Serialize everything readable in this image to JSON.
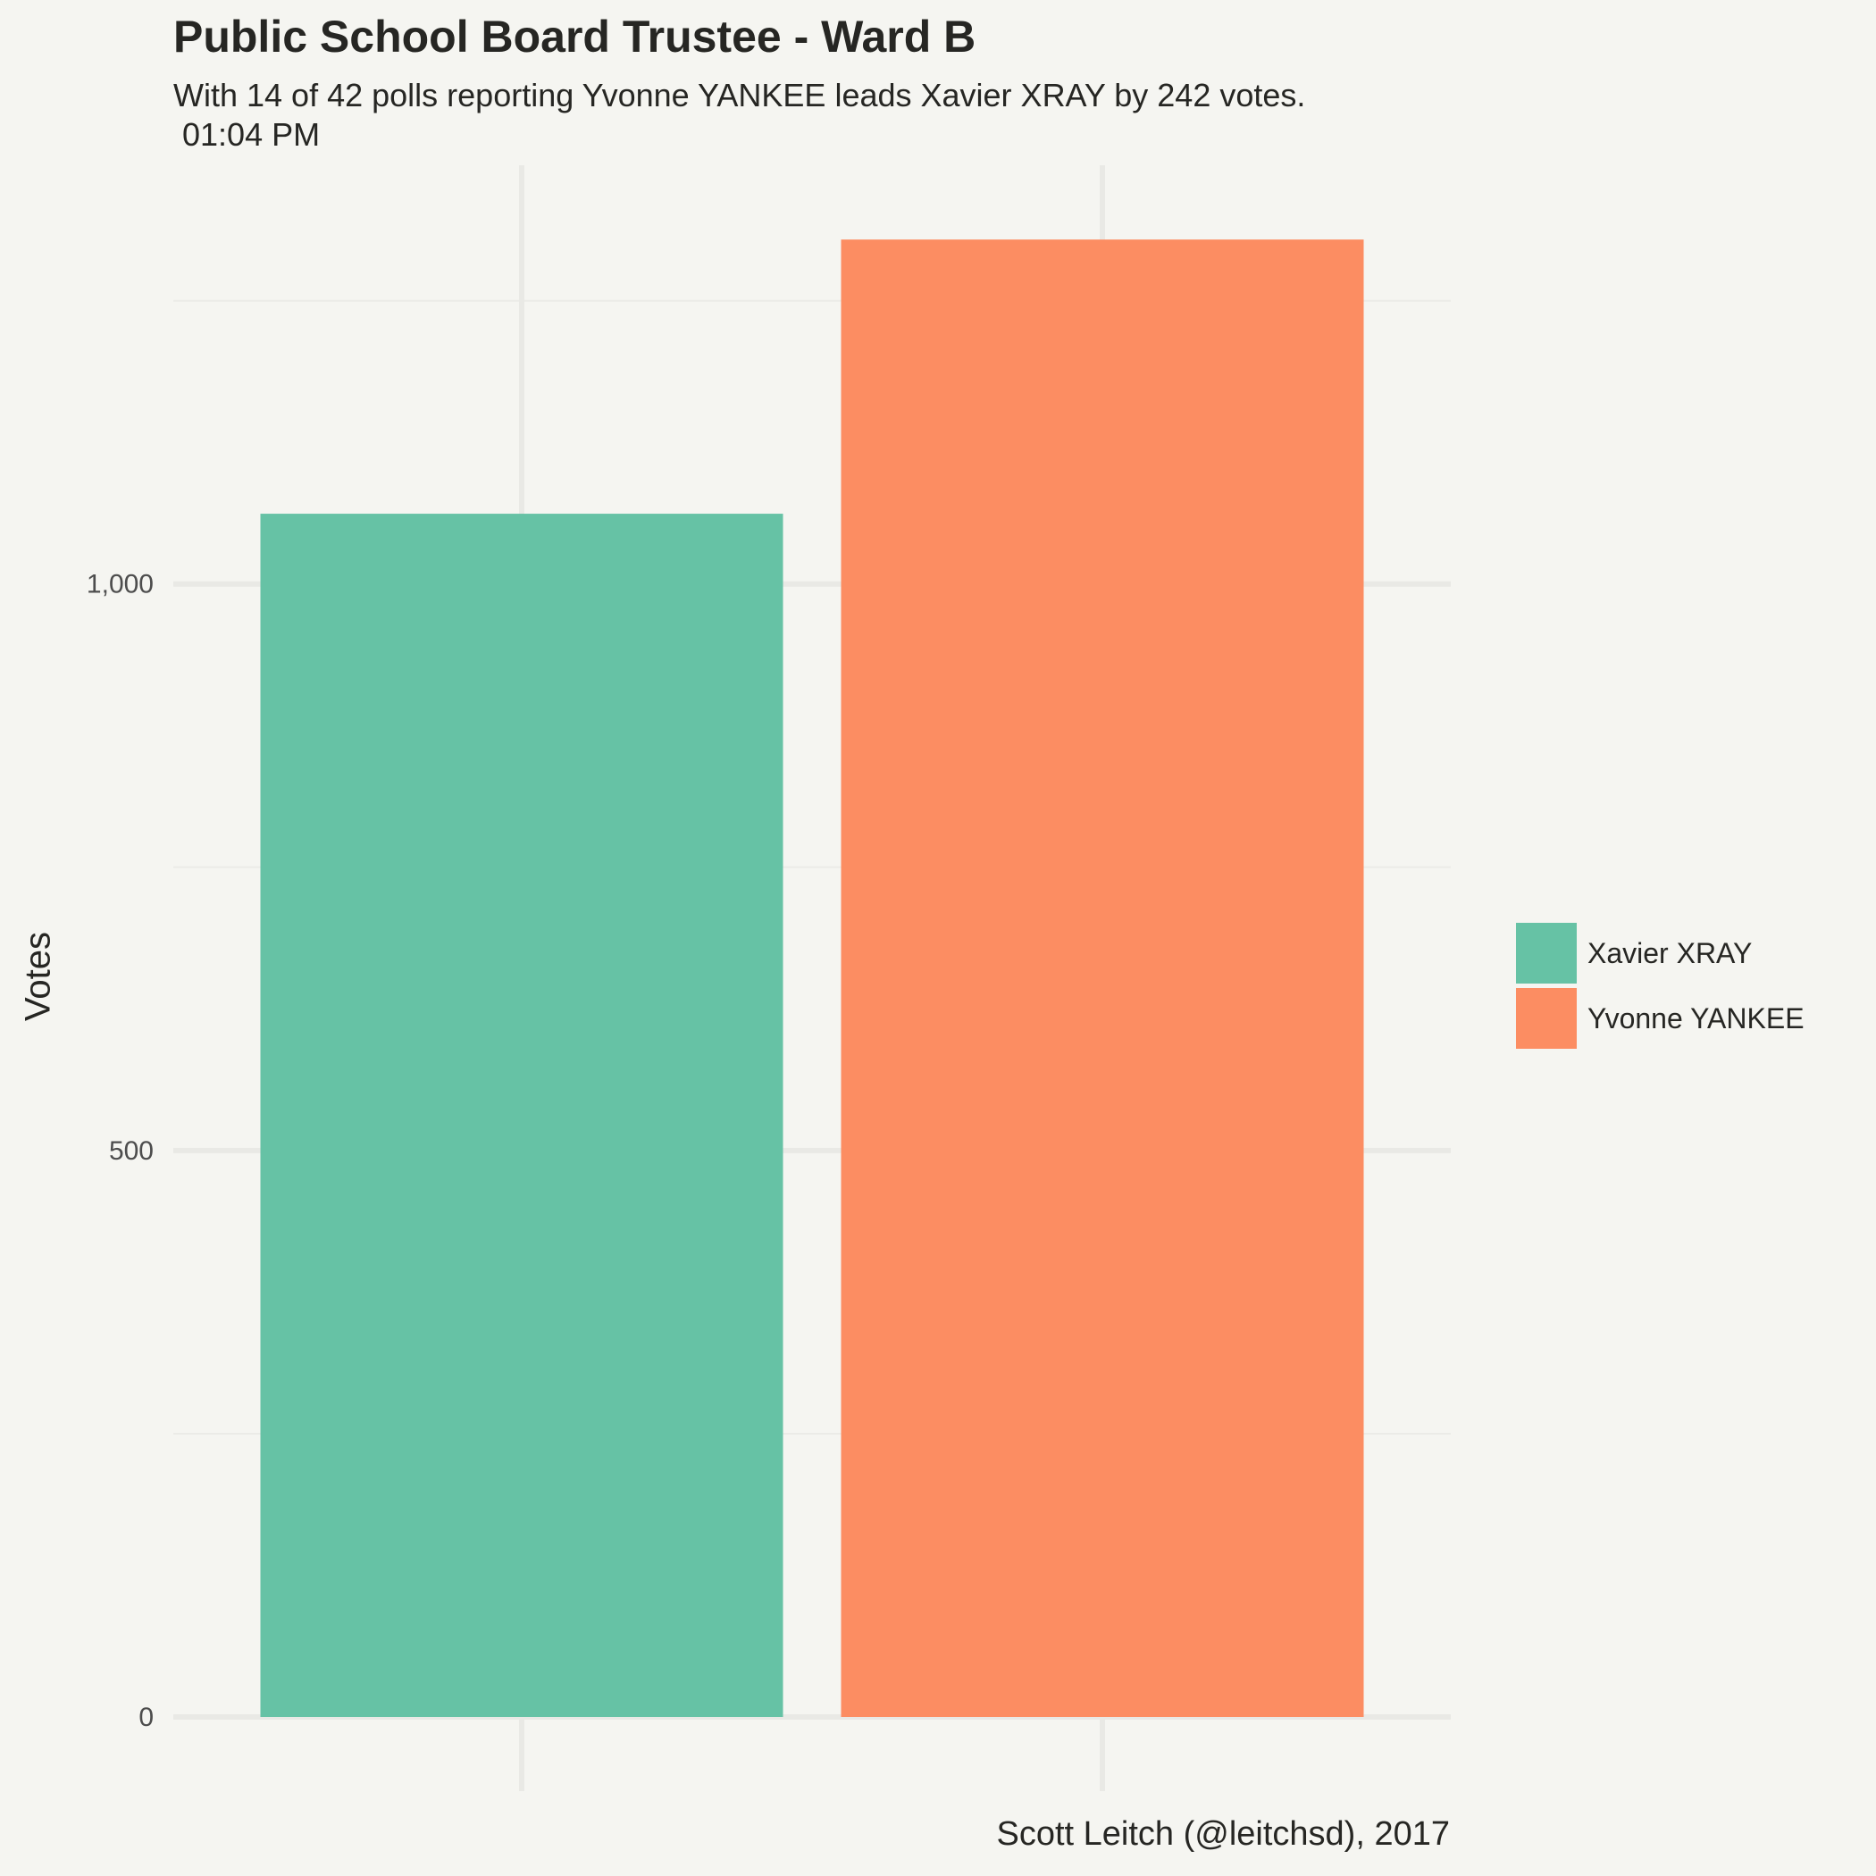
{
  "chart_data": {
    "type": "bar",
    "title": "Public School Board Trustee - Ward B",
    "subtitle_lines": [
      "With 14 of 42 polls reporting Yvonne YANKEE leads Xavier XRAY by 242 votes.",
      " 01:04 PM"
    ],
    "ylabel": "Votes",
    "xlabel": "",
    "caption": "Scott Leitch (@leitchsd), 2017",
    "categories": [
      "Xavier XRAY",
      "Yvonne YANKEE"
    ],
    "values": [
      1062,
      1304
    ],
    "colors": [
      "#66c2a5",
      "#fc8d62"
    ],
    "y_ticks": [
      0,
      500,
      1000
    ],
    "y_tick_labels": [
      "0",
      "500",
      "1,000"
    ],
    "ylim": [
      0,
      1304
    ],
    "grid": true,
    "legend_position": "right",
    "legend": [
      {
        "label": "Xavier XRAY",
        "color": "#66c2a5"
      },
      {
        "label": "Yvonne YANKEE",
        "color": "#fc8d62"
      }
    ]
  }
}
